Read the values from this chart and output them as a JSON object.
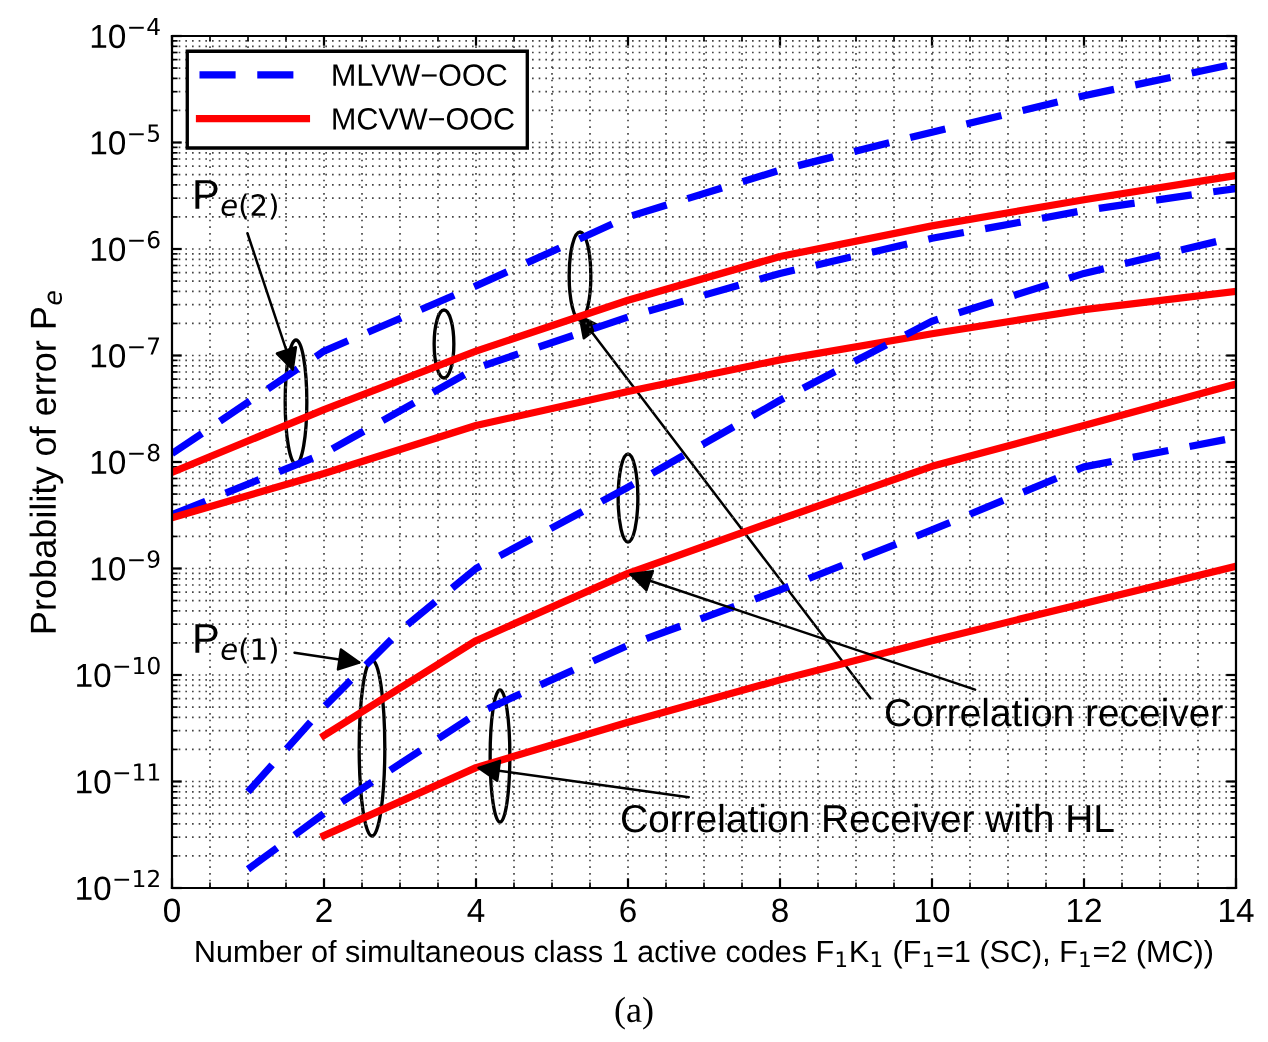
{
  "chart_data": {
    "type": "line",
    "xlabel": "Number of simultaneous class 1 active codes F$_{1}$K$_{1}$ (F$_{1}$=1 (SC), F$_{1}$=2 (MC))",
    "ylabel": "Probability of error P$_{e}$",
    "log": "y",
    "grid": true,
    "legend": "top left",
    "marker": "none",
    "xlim": [
      0,
      14
    ],
    "xticks": [
      0,
      2,
      4,
      6,
      8,
      10,
      12,
      14
    ],
    "ylim": [
      1e-12,
      0.0001
    ],
    "yticks": [
      {
        "value": 1e-12,
        "label": "10$^{−12}$"
      },
      {
        "value": 1e-11,
        "label": "10$^{−11}$"
      },
      {
        "value": 1e-10,
        "label": "10$^{−10}$"
      },
      {
        "value": 1e-09,
        "label": "10$^{−9}$"
      },
      {
        "value": 1e-08,
        "label": "10$^{−8}$"
      },
      {
        "value": 1e-07,
        "label": "10$^{−7}$"
      },
      {
        "value": 1e-06,
        "label": "10$^{−6}$"
      },
      {
        "value": 1e-05,
        "label": "10$^{−5}$"
      },
      {
        "value": 0.0001,
        "label": "10$^{−4}$"
      }
    ],
    "series": [
      {
        "name": "MLVW−OOC",
        "color": "#0000ff",
        "line_style": "dashed",
        "x": [
          0,
          2,
          4,
          6,
          8,
          10,
          12,
          14
        ],
        "values": [
          1.2e-08,
          1.1e-07,
          4.5e-07,
          2e-06,
          5.5e-06,
          1.25e-05,
          2.75e-05,
          5.5e-05
        ]
      },
      {
        "name": "MCVW−OOC",
        "color": "#ff0000",
        "line_style": "solid",
        "x": [
          0,
          2,
          4,
          6,
          8,
          10,
          12,
          14
        ],
        "values": [
          8e-09,
          3.1e-08,
          1.1e-07,
          3.3e-07,
          8.5e-07,
          1.65e-06,
          2.9e-06,
          4.9e-06
        ]
      },
      {
        "color": "#0000ff",
        "line_style": "dashed",
        "x": [
          0,
          2,
          4,
          6,
          8,
          10,
          12,
          14
        ],
        "values": [
          3.2e-09,
          1.2e-08,
          7.6e-08,
          2.3e-07,
          5.9e-07,
          1.26e-06,
          2.3e-06,
          3.7e-06
        ]
      },
      {
        "color": "#ff0000",
        "line_style": "solid",
        "x": [
          0,
          2,
          4,
          6,
          8,
          10,
          12,
          14
        ],
        "values": [
          3e-09,
          7.8e-09,
          2.2e-08,
          4.6e-08,
          9.1e-08,
          1.6e-07,
          2.7e-07,
          4e-07
        ]
      },
      {
        "color": "#0000ff",
        "line_style": "dashed",
        "x": [
          1,
          2,
          3,
          4,
          6,
          8,
          10,
          12,
          14
        ],
        "values": [
          8e-12,
          5e-11,
          2.6e-10,
          1e-09,
          5.8e-09,
          3.8e-08,
          2.1e-07,
          5.9e-07,
          1.3e-06
        ]
      },
      {
        "color": "#ff0000",
        "line_style": "solid",
        "x": [
          2,
          4,
          6,
          8,
          10,
          12,
          14
        ],
        "values": [
          2.7e-11,
          2.1e-10,
          9e-10,
          2.9e-09,
          9.1e-09,
          2.2e-08,
          5.4e-08
        ]
      },
      {
        "color": "#0000ff",
        "line_style": "dashed",
        "x": [
          1,
          2,
          4,
          6,
          8,
          10,
          12,
          14
        ],
        "values": [
          1.5e-12,
          5e-12,
          4.3e-11,
          1.9e-10,
          6.3e-10,
          2.3e-09,
          9e-09,
          1.7e-08
        ]
      },
      {
        "color": "#ff0000",
        "line_style": "solid",
        "x": [
          2,
          4,
          6,
          8,
          10,
          12,
          14
        ],
        "values": [
          3.1e-12,
          1.35e-11,
          3.6e-11,
          9e-11,
          2.1e-10,
          4.7e-10,
          1.05e-09
        ]
      }
    ],
    "annotations": [
      {
        "text": "P$_{e(2)}$",
        "x": 1.6,
        "y": 7e-08
      },
      {
        "text": "P$_{e(1)}$",
        "x": 2.5,
        "y": 1.3e-10
      },
      {
        "text": "Correlation receiver",
        "x": 6,
        "y": 9e-10
      },
      {
        "text": "Correlation Receiver with HL",
        "x": 4,
        "y": 1.35e-11
      },
      "(a)"
    ]
  }
}
